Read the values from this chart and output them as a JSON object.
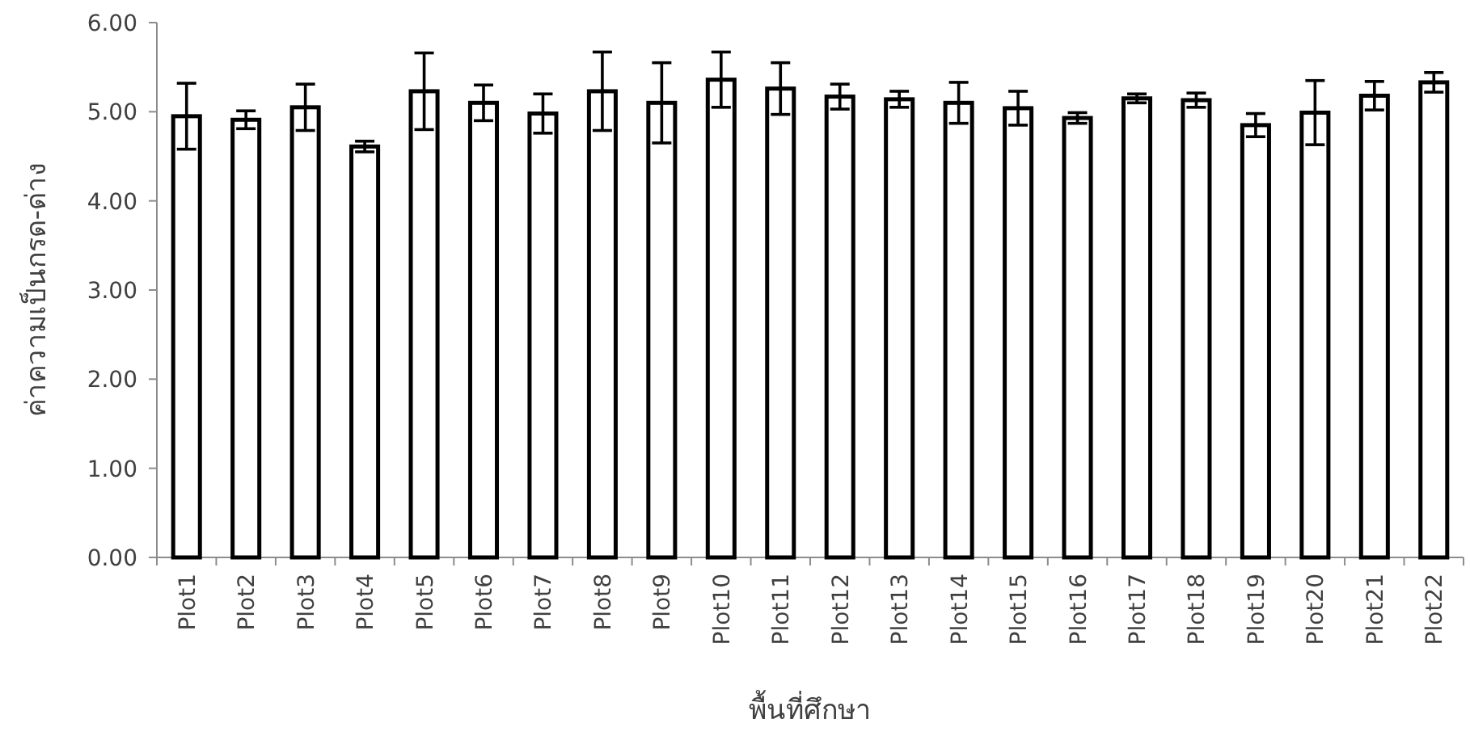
{
  "chart_data": {
    "type": "bar",
    "xlabel": "พื้นที่ศึกษา",
    "ylabel": "ค่าความเป็นกรด-ด่าง",
    "categories": [
      "Plot1",
      "Plot2",
      "Plot3",
      "Plot4",
      "Plot5",
      "Plot6",
      "Plot7",
      "Plot8",
      "Plot9",
      "Plot10",
      "Plot11",
      "Plot12",
      "Plot13",
      "Plot14",
      "Plot15",
      "Plot16",
      "Plot17",
      "Plot18",
      "Plot19",
      "Plot20",
      "Plot21",
      "Plot22"
    ],
    "values": [
      4.95,
      4.91,
      5.05,
      4.61,
      5.23,
      5.1,
      4.98,
      5.23,
      5.1,
      5.36,
      5.26,
      5.17,
      5.14,
      5.1,
      5.04,
      4.93,
      5.15,
      5.13,
      4.85,
      4.99,
      5.18,
      5.33
    ],
    "errors": [
      0.37,
      0.1,
      0.26,
      0.06,
      0.43,
      0.2,
      0.22,
      0.44,
      0.45,
      0.31,
      0.29,
      0.14,
      0.09,
      0.23,
      0.19,
      0.06,
      0.05,
      0.08,
      0.13,
      0.36,
      0.16,
      0.11
    ],
    "color": "#ffffff",
    "ylim": [
      0,
      6
    ],
    "yticks": [
      {
        "value": 0,
        "label": "0.00"
      },
      {
        "value": 1,
        "label": "1.00"
      },
      {
        "value": 2,
        "label": "2.00"
      },
      {
        "value": 3,
        "label": "3.00"
      },
      {
        "value": 4,
        "label": "4.00"
      },
      {
        "value": 5,
        "label": "5.00"
      },
      {
        "value": 6,
        "label": "6.00"
      }
    ],
    "grid": false
  }
}
